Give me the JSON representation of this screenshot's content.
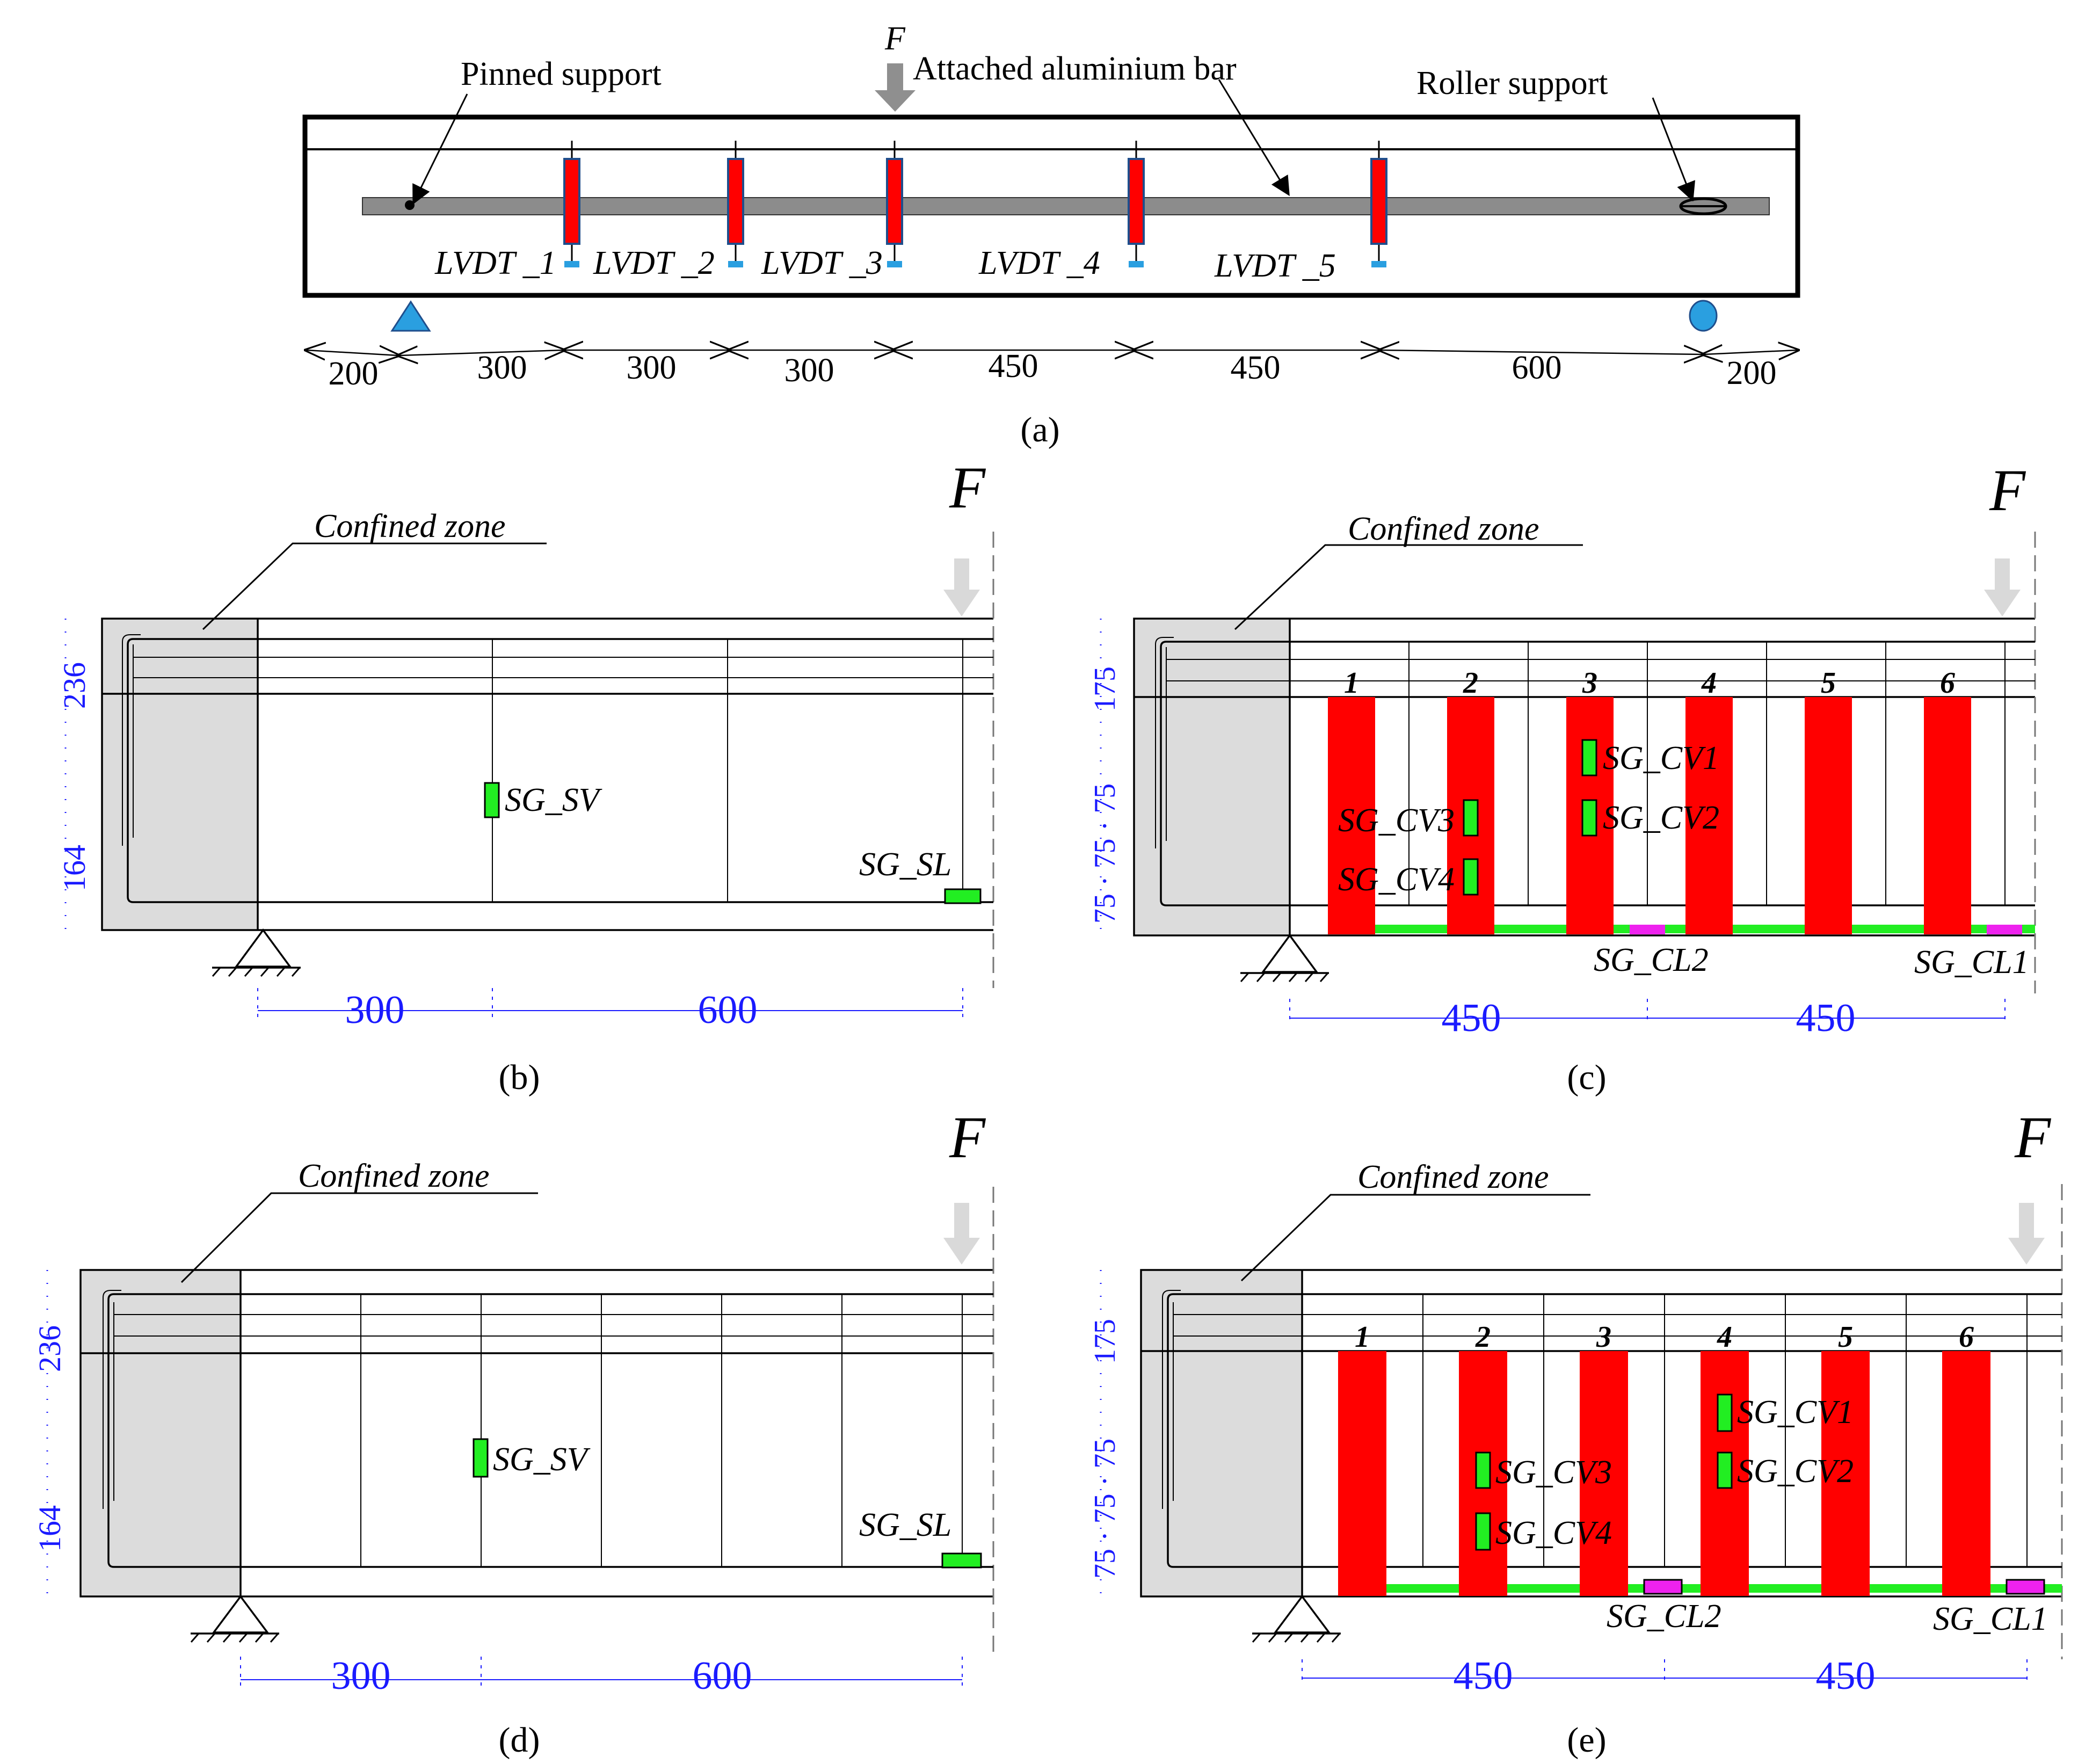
{
  "panel_a": {
    "caption": "(a)",
    "force": "F",
    "pinned_support": "Pinned support",
    "bar_label": "Attached aluminium bar",
    "roller_support": "Roller support",
    "lvdts": [
      "LVDT _1",
      "LVDT _2",
      "LVDT _3",
      "LVDT _4",
      "LVDT _5"
    ],
    "spans": [
      "200",
      "300",
      "300",
      "300",
      "450",
      "450",
      "600",
      "200"
    ]
  },
  "panel_b": {
    "caption": "(b)",
    "force": "F",
    "zone": "Confined zone",
    "h1": "236",
    "h2": "164",
    "sg_sv": "SG_SV",
    "sg_sl": "SG_SL",
    "d1": "300",
    "d2": "600"
  },
  "panel_c": {
    "caption": "(c)",
    "force": "F",
    "zone": "Confined zone",
    "h_top": "175",
    "h_bottom": "75 · 75 · 75",
    "stirrups": [
      "1",
      "2",
      "3",
      "4",
      "5",
      "6"
    ],
    "sg_cv1": "SG_CV1",
    "sg_cv2": "SG_CV2",
    "sg_cv3": "SG_CV3",
    "sg_cv4": "SG_CV4",
    "sg_cl1": "SG_CL1",
    "sg_cl2": "SG_CL2",
    "d1": "450",
    "d2": "450"
  },
  "panel_d": {
    "caption": "(d)",
    "force": "F",
    "zone": "Confined zone",
    "h1": "236",
    "h2": "164",
    "sg_sv": "SG_SV",
    "sg_sl": "SG_SL",
    "d1": "300",
    "d2": "600"
  },
  "panel_e": {
    "caption": "(e)",
    "force": "F",
    "zone": "Confined zone",
    "h_top": "175",
    "h_bottom": "75 · 75 · 75",
    "stirrups": [
      "1",
      "2",
      "3",
      "4",
      "5",
      "6"
    ],
    "sg_cv1": "SG_CV1",
    "sg_cv2": "SG_CV2",
    "sg_cv3": "SG_CV3",
    "sg_cv4": "SG_CV4",
    "sg_cl1": "SG_CL1",
    "sg_cl2": "SG_CL2",
    "d1": "450",
    "d2": "450"
  },
  "colors": {
    "stirrup_red": "#ff0000",
    "gauge_green": "#22ee22",
    "gauge_magenta": "#ee22ee",
    "sensor_blue": "#2a9fe0",
    "dimension_blue": "#1a1aff",
    "confined_gray": "#dcdcdc"
  }
}
